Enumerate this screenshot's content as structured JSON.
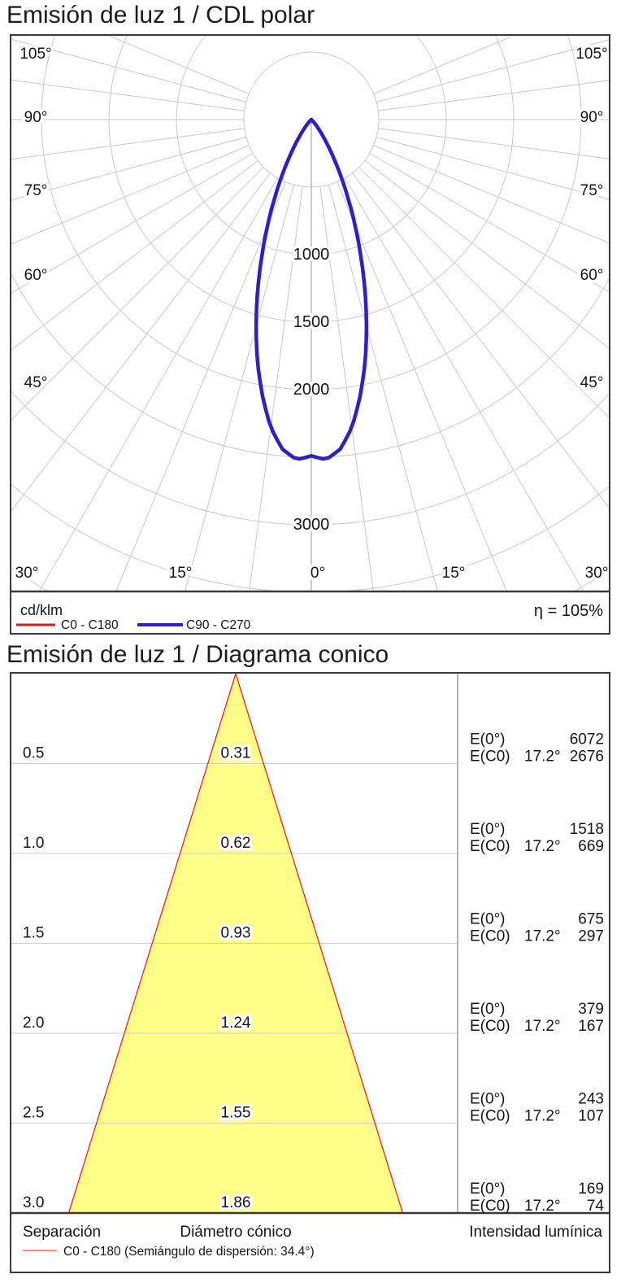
{
  "polar": {
    "title": "Emisión de luz 1 / CDL polar",
    "unit": "cd/klm",
    "efficiency": "η = 105%",
    "angle_ticks_left": [
      "105°",
      "90°",
      "75°",
      "60°",
      "45°"
    ],
    "angle_ticks_right": [
      "105°",
      "90°",
      "75°",
      "60°",
      "45°"
    ],
    "angle_ticks_bottom": [
      "30°",
      "15°",
      "0°",
      "15°",
      "30°"
    ],
    "radial_ticks": [
      "1000",
      "1500",
      "2000",
      "3000"
    ],
    "legend": [
      {
        "label": "C0 - C180",
        "color": "#e81313"
      },
      {
        "label": "C90 - C270",
        "color": "#2a20cc"
      }
    ]
  },
  "cone": {
    "title": "Emisión de luz 1 / Diagrama conico",
    "e0_label": "E(0°)",
    "ec0_label": "E(C0)",
    "angle": "17.2°",
    "rows": [
      {
        "distance": "0.5",
        "diameter": "0.31",
        "e0": "6072",
        "ec0": "2676"
      },
      {
        "distance": "1.0",
        "diameter": "0.62",
        "e0": "1518",
        "ec0": "669"
      },
      {
        "distance": "1.5",
        "diameter": "0.93",
        "e0": "675",
        "ec0": "297"
      },
      {
        "distance": "2.0",
        "diameter": "1.24",
        "e0": "379",
        "ec0": "167"
      },
      {
        "distance": "2.5",
        "diameter": "1.55",
        "e0": "243",
        "ec0": "107"
      },
      {
        "distance": "3.0",
        "diameter": "1.86",
        "e0": "169",
        "ec0": "74"
      }
    ],
    "columns": {
      "separation": "Separación",
      "diameter": "Diámetro cónico",
      "intensity": "Intensidad lumínica"
    },
    "legend": {
      "label": "C0 - C180 (Semiángulo de dispersión: 34.4°)",
      "color": "#f26a5e"
    },
    "fill_color": "#ffff87",
    "edge_color": "#ee2222"
  },
  "chart_data": [
    {
      "type": "line",
      "subtype": "polar-candela-distribution",
      "title": "Emisión de luz 1 / CDL polar",
      "radial_unit": "cd/klm",
      "radial_tick_step": 500,
      "radial_max": 3500,
      "labeled_radial_ticks": [
        1000,
        1500,
        2000,
        3000
      ],
      "angular_tick_step_deg": 7.5,
      "labeled_angles_deg": [
        105,
        90,
        75,
        60,
        45,
        30,
        15,
        0
      ],
      "efficiency_eta_percent": 105,
      "grid": true,
      "legend_position": "bottom",
      "series": [
        {
          "name": "C0 - C180",
          "color": "#e81313",
          "gamma_deg": [
            0,
            2.5,
            5,
            7.5,
            10,
            12.5,
            15,
            17.5,
            20,
            22.5,
            25,
            27.5,
            30,
            32.5,
            35,
            37.5,
            40,
            42.5,
            45,
            47.5,
            50,
            55,
            60,
            70,
            80,
            90
          ],
          "cd_per_klm": [
            2490,
            2520,
            2450,
            2300,
            2080,
            1840,
            1580,
            1320,
            1070,
            845,
            645,
            478,
            340,
            233,
            153,
            99,
            60,
            36,
            20,
            10,
            5,
            1,
            0,
            0,
            0,
            0
          ]
        },
        {
          "name": "C90 - C270",
          "color": "#2a20cc",
          "gamma_deg": [
            0,
            2.5,
            5,
            7.5,
            10,
            12.5,
            15,
            17.5,
            20,
            22.5,
            25,
            27.5,
            30,
            32.5,
            35,
            37.5,
            40,
            42.5,
            45,
            47.5,
            50,
            55,
            60,
            70,
            80,
            90
          ],
          "cd_per_klm": [
            2490,
            2520,
            2450,
            2300,
            2080,
            1840,
            1580,
            1320,
            1070,
            845,
            645,
            478,
            340,
            233,
            153,
            99,
            60,
            36,
            20,
            10,
            5,
            1,
            0,
            0,
            0,
            0
          ]
        }
      ]
    },
    {
      "type": "area",
      "subtype": "cone-diagram",
      "title": "Emisión de luz 1 / Diagrama conico",
      "beam_full_angle_deg": 34.4,
      "eval_angle_deg": 17.2,
      "distances_m": [
        0.5,
        1.0,
        1.5,
        2.0,
        2.5,
        3.0
      ],
      "cone_diameters_m": [
        0.31,
        0.62,
        0.93,
        1.24,
        1.55,
        1.86
      ],
      "E0_lx": [
        6072,
        1518,
        675,
        379,
        243,
        169
      ],
      "EC0_lx": [
        2676,
        669,
        297,
        167,
        107,
        74
      ],
      "max_distance_m": 3.0
    }
  ]
}
